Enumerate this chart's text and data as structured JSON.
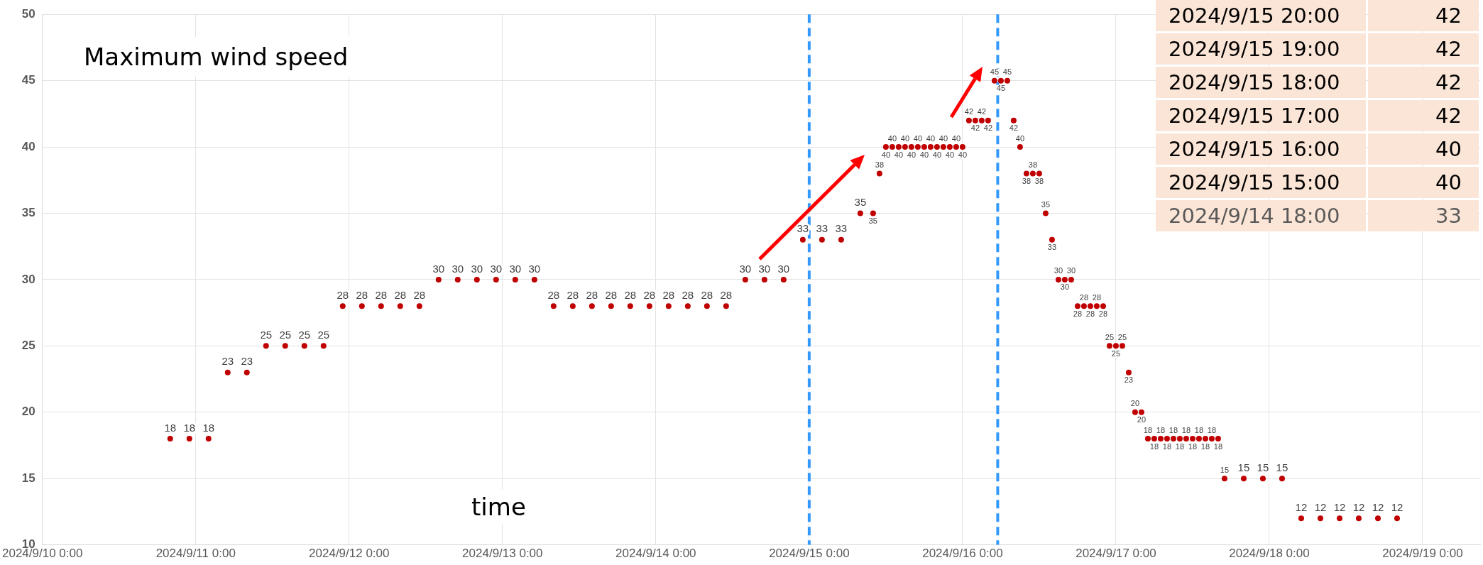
{
  "chart_data": {
    "type": "scatter",
    "title": "Maximum wind speed",
    "xlabel": "time",
    "x": [
      "2024-09-10T20:00",
      "2024-09-10T23:00",
      "2024-09-11T02:00",
      "2024-09-11T05:00",
      "2024-09-11T08:00",
      "2024-09-11T11:00",
      "2024-09-11T14:00",
      "2024-09-11T17:00",
      "2024-09-11T20:00",
      "2024-09-11T23:00",
      "2024-09-12T02:00",
      "2024-09-12T05:00",
      "2024-09-12T08:00",
      "2024-09-12T11:00",
      "2024-09-12T14:00",
      "2024-09-12T17:00",
      "2024-09-12T20:00",
      "2024-09-12T23:00",
      "2024-09-13T02:00",
      "2024-09-13T05:00",
      "2024-09-13T08:00",
      "2024-09-13T11:00",
      "2024-09-13T14:00",
      "2024-09-13T17:00",
      "2024-09-13T20:00",
      "2024-09-13T23:00",
      "2024-09-14T02:00",
      "2024-09-14T05:00",
      "2024-09-14T08:00",
      "2024-09-14T11:00",
      "2024-09-14T14:00",
      "2024-09-14T17:00",
      "2024-09-14T20:00",
      "2024-09-14T23:00",
      "2024-09-15T02:00",
      "2024-09-15T05:00",
      "2024-09-15T08:00",
      "2024-09-15T10:00",
      "2024-09-15T11:00",
      "2024-09-15T12:00",
      "2024-09-15T13:00",
      "2024-09-15T14:00",
      "2024-09-15T15:00",
      "2024-09-15T16:00",
      "2024-09-15T17:00",
      "2024-09-15T18:00",
      "2024-09-15T19:00",
      "2024-09-15T20:00",
      "2024-09-15T21:00",
      "2024-09-15T22:00",
      "2024-09-15T23:00",
      "2024-09-16T00:00",
      "2024-09-16T01:00",
      "2024-09-16T02:00",
      "2024-09-16T03:00",
      "2024-09-16T04:00",
      "2024-09-16T05:00",
      "2024-09-16T06:00",
      "2024-09-16T07:00",
      "2024-09-16T08:00",
      "2024-09-16T09:00",
      "2024-09-16T10:00",
      "2024-09-16T11:00",
      "2024-09-16T12:00",
      "2024-09-16T13:00",
      "2024-09-16T14:00",
      "2024-09-16T15:00",
      "2024-09-16T16:00",
      "2024-09-16T17:00",
      "2024-09-16T18:00",
      "2024-09-16T19:00",
      "2024-09-16T20:00",
      "2024-09-16T21:00",
      "2024-09-16T22:00",
      "2024-09-16T23:00",
      "2024-09-17T00:00",
      "2024-09-17T01:00",
      "2024-09-17T02:00",
      "2024-09-17T03:00",
      "2024-09-17T04:00",
      "2024-09-17T05:00",
      "2024-09-17T06:00",
      "2024-09-17T07:00",
      "2024-09-17T08:00",
      "2024-09-17T09:00",
      "2024-09-17T10:00",
      "2024-09-17T11:00",
      "2024-09-17T12:00",
      "2024-09-17T13:00",
      "2024-09-17T14:00",
      "2024-09-17T15:00",
      "2024-09-17T16:00",
      "2024-09-17T17:00",
      "2024-09-17T20:00",
      "2024-09-17T23:00",
      "2024-09-18T02:00",
      "2024-09-18T05:00",
      "2024-09-18T08:00",
      "2024-09-18T11:00",
      "2024-09-18T14:00",
      "2024-09-18T17:00",
      "2024-09-18T20:00"
    ],
    "series": [
      {
        "color": "#c00000",
        "values": [
          18,
          18,
          18,
          23,
          23,
          25,
          25,
          25,
          25,
          28,
          28,
          28,
          28,
          28,
          30,
          30,
          30,
          30,
          30,
          30,
          28,
          28,
          28,
          28,
          28,
          28,
          28,
          28,
          28,
          28,
          30,
          30,
          30,
          33,
          33,
          33,
          35,
          35,
          38,
          40,
          40,
          40,
          40,
          40,
          40,
          40,
          40,
          40,
          40,
          40,
          40,
          40,
          42,
          42,
          42,
          42,
          45,
          45,
          45,
          42,
          40,
          38,
          38,
          38,
          35,
          33,
          30,
          30,
          30,
          28,
          28,
          28,
          28,
          28,
          25,
          25,
          25,
          23,
          20,
          20,
          18,
          18,
          18,
          18,
          18,
          18,
          18,
          18,
          18,
          18,
          18,
          18,
          15,
          15,
          15,
          15,
          12,
          12,
          12,
          12,
          12,
          12
        ]
      }
    ],
    "data_labels": true,
    "marker": "circle",
    "legend": false,
    "grid": true,
    "xlim": [
      "2024-09-10",
      "2024-09-19T09:00"
    ],
    "xticks": [
      {
        "value": "2024-09-10",
        "label": "2024/9/10 0:00"
      },
      {
        "value": "2024-09-11",
        "label": "2024/9/11 0:00"
      },
      {
        "value": "2024-09-12",
        "label": "2024/9/12 0:00"
      },
      {
        "value": "2024-09-13",
        "label": "2024/9/13 0:00"
      },
      {
        "value": "2024-09-14",
        "label": "2024/9/14 0:00"
      },
      {
        "value": "2024-09-15",
        "label": "2024/9/15 0:00"
      },
      {
        "value": "2024-09-16",
        "label": "2024/9/16 0:00"
      },
      {
        "value": "2024-09-17",
        "label": "2024/9/17 0:00"
      },
      {
        "value": "2024-09-18",
        "label": "2024/9/18 0:00"
      },
      {
        "value": "2024-09-19",
        "label": "2024/9/19 0:00"
      }
    ],
    "ylim": [
      10,
      50
    ],
    "yticks": [
      10,
      15,
      20,
      25,
      30,
      35,
      40,
      45,
      50
    ],
    "ref_lines": [
      {
        "axis": "x",
        "value": "2024-09-15T00:00",
        "color": "#3399ff",
        "line_style": "dashed"
      },
      {
        "axis": "x",
        "value": "2024-09-16T05:30",
        "color": "#3399ff",
        "line_style": "dashed"
      }
    ],
    "annotations": [
      "2024/9/15 20:00",
      "42",
      "2024/9/15 19:00",
      "42",
      "2024/9/15 18:00",
      "42",
      "2024/9/15 17:00",
      "42",
      "2024/9/15 16:00",
      "40",
      "2024/9/15 15:00",
      "40",
      "2024/9/14 18:00",
      "33"
    ]
  }
}
